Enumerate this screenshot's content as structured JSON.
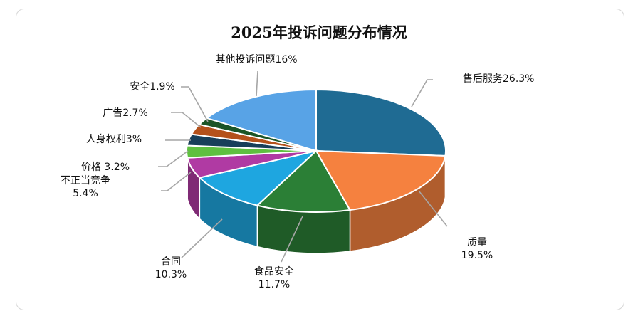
{
  "chart_data": {
    "type": "pie",
    "style": "3d",
    "title": "2025年投诉问题分布情况",
    "start": "top, clockwise",
    "slices": [
      {
        "label": "售后服务",
        "value": 26.3,
        "text": "售后服务26.3%",
        "color": "#1f6b93"
      },
      {
        "label": "质量",
        "value": 19.5,
        "text": "质量\n19.5%",
        "color": "#f5813f"
      },
      {
        "label": "食品安全",
        "value": 11.7,
        "text": "食品安全\n11.7%",
        "color": "#2b7f36"
      },
      {
        "label": "合同",
        "value": 10.3,
        "text": "合同\n10.3%",
        "color": "#1ea6e0"
      },
      {
        "label": "不正当竞争",
        "value": 5.4,
        "text": "不正当竞争\n5.4%",
        "color": "#b03aa3"
      },
      {
        "label": "价格",
        "value": 3.2,
        "text": "价格 3.2%",
        "color": "#5fc040"
      },
      {
        "label": "人身权利",
        "value": 3,
        "text": "人身权利3%",
        "color": "#183f5a"
      },
      {
        "label": "广告",
        "value": 2.7,
        "text": "广告2.7%",
        "color": "#b4511b"
      },
      {
        "label": "安全",
        "value": 1.9,
        "text": "安全1.9%",
        "color": "#1b5426"
      },
      {
        "label": "其他投诉问题",
        "value": 16,
        "text": "其他投诉问题16%",
        "color": "#58a3e6"
      }
    ]
  }
}
